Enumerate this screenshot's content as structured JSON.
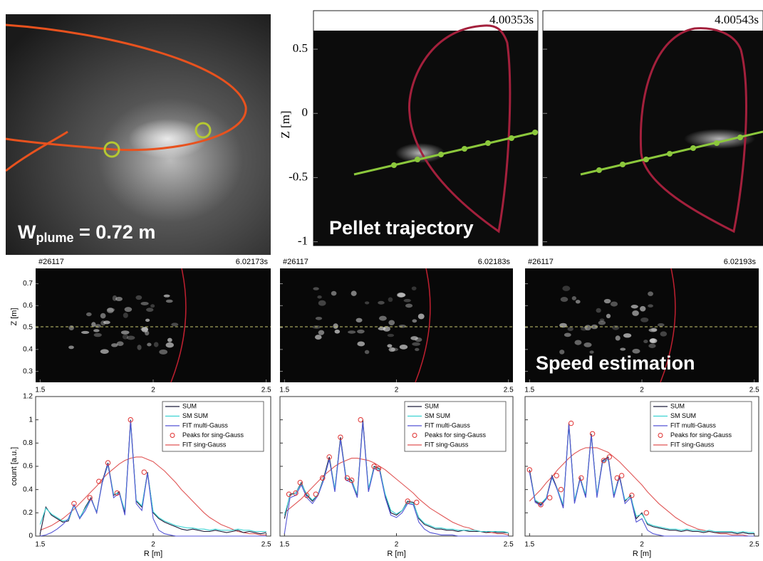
{
  "top_left_image": {
    "annotation": {
      "base": "W",
      "subscript": "plume",
      "rest": " = 0.72 m"
    }
  },
  "top_panels": {
    "ylabel": "Z [m]",
    "ylim": [
      -1.03,
      0.8
    ],
    "yticks": [
      0.5,
      0,
      -0.5,
      -1
    ],
    "panels": [
      {
        "time": "4.00353s"
      },
      {
        "time": "4.00543s"
      }
    ],
    "annotation": "Pellet trajectory"
  },
  "camera_panels": {
    "ylabel": "Z [m]",
    "ylim": [
      0.25,
      0.77
    ],
    "yticks": [
      0.3,
      0.4,
      0.5,
      0.6,
      0.7
    ],
    "xlim": [
      1.48,
      2.52
    ],
    "xticks": [
      1.5,
      2,
      2.5
    ],
    "panels": [
      {
        "shot": "#26117",
        "time": "6.02173s"
      },
      {
        "shot": "#26117",
        "time": "6.02183s"
      },
      {
        "shot": "#26117",
        "time": "6.02193s"
      }
    ],
    "annotation": "Speed estimation"
  },
  "chart_data": [
    {
      "type": "line",
      "xlabel": "R [m]",
      "ylabel": "count [a.u.]",
      "ytick_labels": true,
      "xlim": [
        1.48,
        2.52
      ],
      "xticks": [
        1.5,
        2,
        2.5
      ],
      "ylim": [
        0,
        1.2
      ],
      "yticks": [
        0,
        0.2,
        0.4,
        0.6,
        0.8,
        1,
        1.2
      ],
      "x": [
        1.5,
        1.525,
        1.55,
        1.575,
        1.6,
        1.625,
        1.65,
        1.675,
        1.7,
        1.725,
        1.75,
        1.775,
        1.8,
        1.825,
        1.85,
        1.875,
        1.9,
        1.925,
        1.95,
        1.975,
        2.0,
        2.025,
        2.05,
        2.075,
        2.1,
        2.125,
        2.15,
        2.175,
        2.2,
        2.225,
        2.25,
        2.275,
        2.3,
        2.325,
        2.35,
        2.375,
        2.4,
        2.425,
        2.45,
        2.475,
        2.5
      ],
      "series": [
        {
          "name": "SUM",
          "color": "#1c1c3a",
          "values": [
            0.02,
            0.25,
            0.18,
            0.15,
            0.12,
            0.13,
            0.27,
            0.15,
            0.25,
            0.33,
            0.2,
            0.47,
            0.63,
            0.35,
            0.38,
            0.2,
            1.0,
            0.3,
            0.25,
            0.55,
            0.2,
            0.15,
            0.12,
            0.1,
            0.08,
            0.06,
            0.05,
            0.06,
            0.05,
            0.04,
            0.04,
            0.05,
            0.04,
            0.03,
            0.04,
            0.05,
            0.03,
            0.04,
            0.03,
            0.02,
            0.03
          ]
        },
        {
          "name": "SM SUM",
          "color": "#3cd3d3",
          "values": [
            0.1,
            0.24,
            0.19,
            0.16,
            0.13,
            0.14,
            0.26,
            0.16,
            0.24,
            0.32,
            0.21,
            0.46,
            0.61,
            0.36,
            0.37,
            0.22,
            0.97,
            0.31,
            0.26,
            0.54,
            0.21,
            0.16,
            0.13,
            0.11,
            0.09,
            0.08,
            0.07,
            0.07,
            0.06,
            0.06,
            0.05,
            0.06,
            0.05,
            0.05,
            0.05,
            0.06,
            0.05,
            0.05,
            0.04,
            0.04,
            0.04
          ]
        },
        {
          "name": "FIT multi-Gauss",
          "color": "#5555d5",
          "values": [
            0,
            0.01,
            0.03,
            0.06,
            0.1,
            0.15,
            0.27,
            0.15,
            0.22,
            0.32,
            0.2,
            0.46,
            0.62,
            0.33,
            0.37,
            0.18,
            0.99,
            0.28,
            0.22,
            0.54,
            0.15,
            0.05,
            0.02,
            0.01,
            0,
            0,
            0,
            0,
            0,
            0,
            0,
            0,
            0,
            0,
            0,
            0,
            0,
            0,
            0,
            0,
            0
          ]
        },
        {
          "name": "Peaks for sing-Gauss",
          "color": "#e03030",
          "marker": "circle",
          "x": [
            1.65,
            1.72,
            1.76,
            1.8,
            1.84,
            1.9,
            1.96
          ],
          "values": [
            0.28,
            0.33,
            0.47,
            0.63,
            0.37,
            1.0,
            0.55
          ]
        },
        {
          "name": "FIT sing-Gauss",
          "color": "#e05555",
          "values": [
            0.05,
            0.07,
            0.09,
            0.12,
            0.15,
            0.19,
            0.23,
            0.28,
            0.33,
            0.38,
            0.43,
            0.49,
            0.54,
            0.58,
            0.62,
            0.65,
            0.67,
            0.68,
            0.68,
            0.66,
            0.64,
            0.6,
            0.56,
            0.51,
            0.46,
            0.4,
            0.35,
            0.3,
            0.25,
            0.2,
            0.16,
            0.13,
            0.1,
            0.08,
            0.06,
            0.04,
            0.03,
            0.02,
            0.02,
            0.01,
            0.01
          ]
        }
      ]
    },
    {
      "type": "line",
      "xlabel": "R [m]",
      "ytick_labels": false,
      "xlim": [
        1.48,
        2.52
      ],
      "xticks": [
        1.5,
        2,
        2.5
      ],
      "ylim": [
        0,
        1.2
      ],
      "yticks": [
        0,
        0.2,
        0.4,
        0.6,
        0.8,
        1,
        1.2
      ],
      "x": [
        1.5,
        1.525,
        1.55,
        1.575,
        1.6,
        1.625,
        1.65,
        1.675,
        1.7,
        1.725,
        1.75,
        1.775,
        1.8,
        1.825,
        1.85,
        1.875,
        1.9,
        1.925,
        1.95,
        1.975,
        2.0,
        2.025,
        2.05,
        2.075,
        2.1,
        2.125,
        2.15,
        2.175,
        2.2,
        2.225,
        2.25,
        2.275,
        2.3,
        2.325,
        2.35,
        2.375,
        2.4,
        2.425,
        2.45,
        2.475,
        2.5
      ],
      "series": [
        {
          "name": "SUM",
          "color": "#1c1c3a",
          "values": [
            0.15,
            0.36,
            0.37,
            0.46,
            0.35,
            0.3,
            0.36,
            0.5,
            0.68,
            0.4,
            0.85,
            0.5,
            0.48,
            0.35,
            1.0,
            0.4,
            0.6,
            0.58,
            0.35,
            0.2,
            0.18,
            0.22,
            0.3,
            0.29,
            0.15,
            0.1,
            0.08,
            0.06,
            0.06,
            0.05,
            0.05,
            0.04,
            0.05,
            0.04,
            0.04,
            0.04,
            0.03,
            0.04,
            0.03,
            0.03,
            0.03
          ]
        },
        {
          "name": "SM SUM",
          "color": "#3cd3d3",
          "values": [
            0.18,
            0.35,
            0.37,
            0.45,
            0.36,
            0.31,
            0.36,
            0.49,
            0.66,
            0.41,
            0.83,
            0.5,
            0.47,
            0.36,
            0.97,
            0.41,
            0.59,
            0.57,
            0.36,
            0.22,
            0.19,
            0.22,
            0.29,
            0.28,
            0.16,
            0.11,
            0.09,
            0.07,
            0.07,
            0.06,
            0.06,
            0.05,
            0.05,
            0.05,
            0.05,
            0.04,
            0.04,
            0.04,
            0.04,
            0.04,
            0.03
          ]
        },
        {
          "name": "FIT multi-Gauss",
          "color": "#5555d5",
          "values": [
            0.02,
            0.33,
            0.35,
            0.44,
            0.33,
            0.28,
            0.35,
            0.48,
            0.66,
            0.38,
            0.83,
            0.48,
            0.46,
            0.33,
            0.98,
            0.38,
            0.58,
            0.56,
            0.33,
            0.18,
            0.16,
            0.2,
            0.28,
            0.27,
            0.12,
            0.06,
            0.03,
            0.02,
            0.01,
            0.01,
            0.01,
            0,
            0,
            0,
            0,
            0,
            0,
            0,
            0,
            0,
            0
          ]
        },
        {
          "name": "Peaks for sing-Gauss",
          "color": "#e03030",
          "marker": "circle",
          "x": [
            1.52,
            1.55,
            1.57,
            1.6,
            1.64,
            1.67,
            1.7,
            1.75,
            1.78,
            1.8,
            1.84,
            1.9,
            1.92,
            2.05,
            2.09
          ],
          "values": [
            0.36,
            0.37,
            0.46,
            0.35,
            0.36,
            0.5,
            0.68,
            0.85,
            0.5,
            0.48,
            1.0,
            0.6,
            0.58,
            0.3,
            0.29
          ]
        },
        {
          "name": "FIT sing-Gauss",
          "color": "#e05555",
          "values": [
            0.2,
            0.24,
            0.28,
            0.32,
            0.37,
            0.42,
            0.47,
            0.52,
            0.56,
            0.6,
            0.63,
            0.65,
            0.67,
            0.67,
            0.66,
            0.65,
            0.63,
            0.6,
            0.57,
            0.53,
            0.49,
            0.45,
            0.41,
            0.37,
            0.32,
            0.28,
            0.24,
            0.21,
            0.18,
            0.15,
            0.12,
            0.1,
            0.08,
            0.07,
            0.05,
            0.04,
            0.03,
            0.03,
            0.02,
            0.02,
            0.01
          ]
        }
      ]
    },
    {
      "type": "line",
      "xlabel": "R [m]",
      "ytick_labels": false,
      "xlim": [
        1.48,
        2.52
      ],
      "xticks": [
        1.5,
        2,
        2.5
      ],
      "ylim": [
        0,
        1.2
      ],
      "yticks": [
        0,
        0.2,
        0.4,
        0.6,
        0.8,
        1,
        1.2
      ],
      "x": [
        1.5,
        1.525,
        1.55,
        1.575,
        1.6,
        1.625,
        1.65,
        1.675,
        1.7,
        1.725,
        1.75,
        1.775,
        1.8,
        1.825,
        1.85,
        1.875,
        1.9,
        1.925,
        1.95,
        1.975,
        2.0,
        2.025,
        2.05,
        2.075,
        2.1,
        2.125,
        2.15,
        2.175,
        2.2,
        2.225,
        2.25,
        2.275,
        2.3,
        2.325,
        2.35,
        2.375,
        2.4,
        2.425,
        2.45,
        2.475,
        2.5
      ],
      "series": [
        {
          "name": "SUM",
          "color": "#1c1c3a",
          "values": [
            0.57,
            0.3,
            0.27,
            0.33,
            0.52,
            0.4,
            0.25,
            0.97,
            0.3,
            0.5,
            0.35,
            0.88,
            0.35,
            0.65,
            0.68,
            0.35,
            0.52,
            0.3,
            0.35,
            0.15,
            0.2,
            0.1,
            0.08,
            0.07,
            0.06,
            0.05,
            0.05,
            0.04,
            0.05,
            0.04,
            0.04,
            0.03,
            0.04,
            0.03,
            0.03,
            0.03,
            0.03,
            0.02,
            0.03,
            0.02,
            0.02
          ]
        },
        {
          "name": "SM SUM",
          "color": "#3cd3d3",
          "values": [
            0.55,
            0.31,
            0.28,
            0.33,
            0.5,
            0.4,
            0.27,
            0.94,
            0.31,
            0.49,
            0.36,
            0.86,
            0.36,
            0.63,
            0.66,
            0.36,
            0.5,
            0.31,
            0.34,
            0.17,
            0.19,
            0.11,
            0.09,
            0.08,
            0.07,
            0.06,
            0.06,
            0.05,
            0.06,
            0.05,
            0.05,
            0.04,
            0.05,
            0.04,
            0.04,
            0.04,
            0.04,
            0.03,
            0.04,
            0.03,
            0.03
          ]
        },
        {
          "name": "FIT multi-Gauss",
          "color": "#5555d5",
          "values": [
            0.55,
            0.29,
            0.26,
            0.32,
            0.51,
            0.39,
            0.24,
            0.96,
            0.28,
            0.49,
            0.33,
            0.87,
            0.33,
            0.64,
            0.67,
            0.33,
            0.51,
            0.28,
            0.33,
            0.12,
            0.15,
            0.05,
            0.02,
            0.01,
            0,
            0,
            0,
            0,
            0,
            0,
            0,
            0,
            0,
            0,
            0,
            0,
            0,
            0,
            0,
            0,
            0
          ]
        },
        {
          "name": "Peaks for sing-Gauss",
          "color": "#e03030",
          "marker": "circle",
          "x": [
            1.5,
            1.55,
            1.59,
            1.62,
            1.64,
            1.685,
            1.73,
            1.78,
            1.83,
            1.855,
            1.89,
            1.91,
            1.955,
            2.02
          ],
          "values": [
            0.57,
            0.27,
            0.33,
            0.52,
            0.4,
            0.97,
            0.5,
            0.88,
            0.65,
            0.68,
            0.5,
            0.52,
            0.35,
            0.2
          ]
        },
        {
          "name": "FIT sing-Gauss",
          "color": "#e05555",
          "values": [
            0.3,
            0.35,
            0.4,
            0.46,
            0.51,
            0.57,
            0.62,
            0.67,
            0.71,
            0.74,
            0.76,
            0.76,
            0.76,
            0.74,
            0.72,
            0.68,
            0.64,
            0.59,
            0.54,
            0.49,
            0.44,
            0.38,
            0.33,
            0.28,
            0.24,
            0.2,
            0.16,
            0.13,
            0.1,
            0.08,
            0.06,
            0.05,
            0.04,
            0.03,
            0.02,
            0.02,
            0.01,
            0.01,
            0.01,
            0,
            0
          ]
        }
      ]
    }
  ]
}
